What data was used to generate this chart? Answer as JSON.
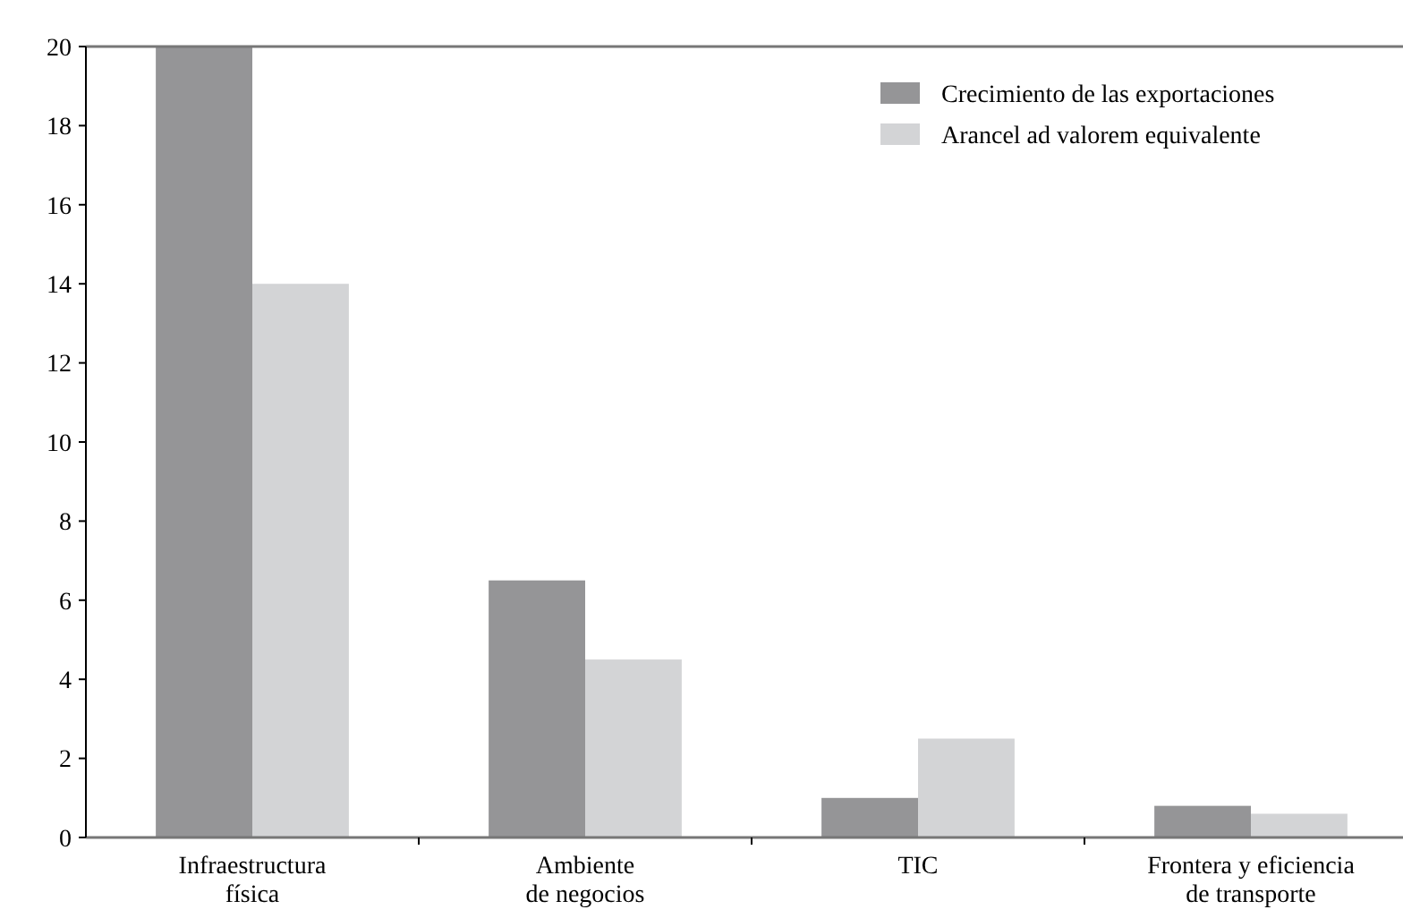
{
  "chart_data": {
    "type": "bar",
    "categories": [
      "Infraestructura física",
      "Ambiente de negocios",
      "TIC",
      "Frontera y eficiencia de transporte"
    ],
    "series": [
      {
        "name": "Crecimiento de las exportaciones",
        "color": "#959597",
        "values": [
          20,
          6.5,
          1,
          0.8
        ]
      },
      {
        "name": "Arancel ad valorem equivalente",
        "color": "#d3d4d6",
        "values": [
          14,
          4.5,
          2.5,
          0.6
        ]
      }
    ],
    "ylim": [
      0,
      20
    ],
    "yticks": [
      0,
      2,
      4,
      6,
      8,
      10,
      12,
      14,
      16,
      18,
      20
    ],
    "grid": false,
    "legend": "top right"
  }
}
